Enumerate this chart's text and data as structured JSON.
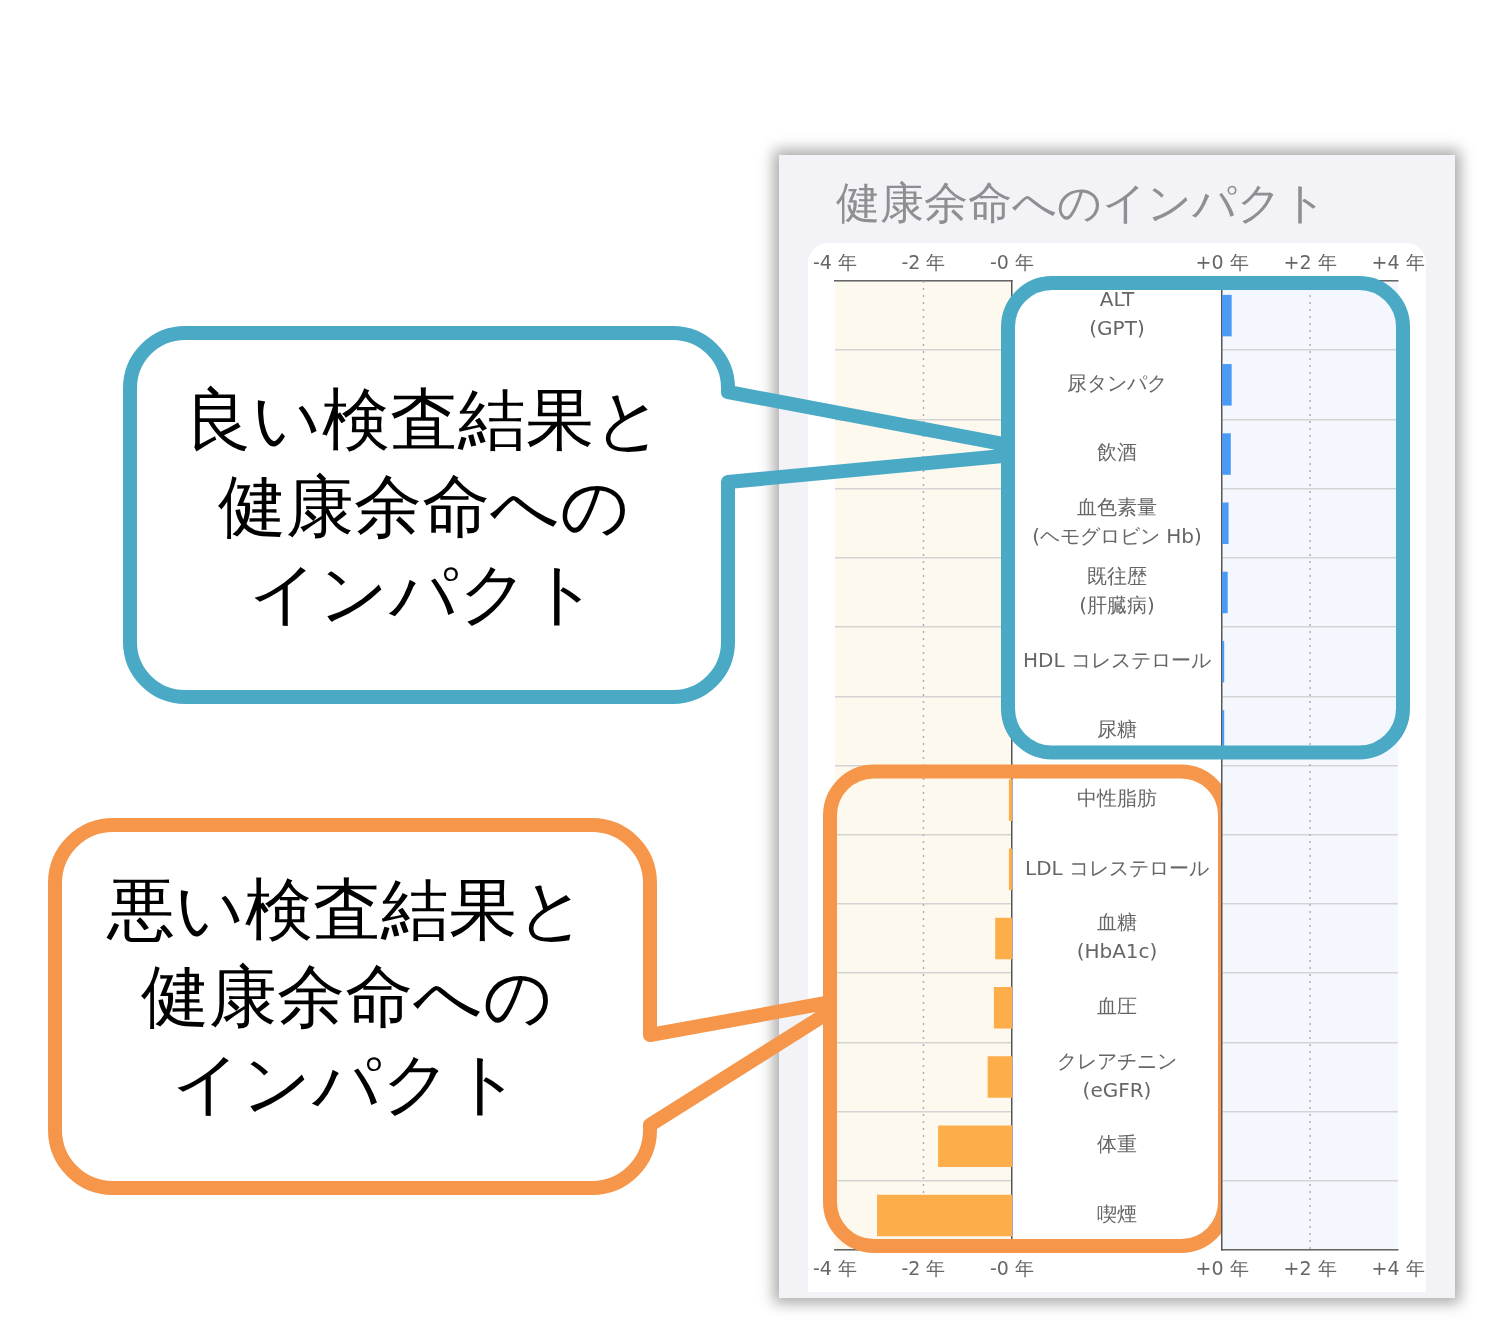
{
  "chart_data": [
    {
      "type": "bar",
      "orientation": "horizontal",
      "title": "健康余命へのインパクト",
      "categories": [
        null,
        null,
        null,
        null,
        null,
        null,
        null,
        "中性脂肪",
        "LDL コレステロール",
        "血糖\n(HbA1c)",
        "血圧",
        "クレアチニン\n(eGFR)",
        "体重",
        "喫煙"
      ],
      "values": [
        null,
        null,
        null,
        null,
        null,
        null,
        null,
        -0.07,
        -0.07,
        -0.38,
        -0.41,
        -0.55,
        -1.67,
        -3.05
      ],
      "color": "#fdae4b",
      "xlim": [
        -4,
        0
      ],
      "xticks": [
        {
          "value": -4,
          "label": "-4 年"
        },
        {
          "value": -2,
          "label": "-2 年"
        },
        {
          "value": 0,
          "label": "-0 年"
        }
      ],
      "x2lim": [
        -4,
        0
      ],
      "x2ticks": [
        {
          "value": -4,
          "label": "-4 年"
        },
        {
          "value": -2,
          "label": "-2 年"
        },
        {
          "value": 0,
          "label": "-0 年"
        }
      ],
      "grid": "y",
      "ref_lines": [
        {
          "axis": "x",
          "value": -2,
          "color": "#b0b0b0",
          "line_style": "dotted"
        }
      ],
      "bands": [
        {
          "axis": "x",
          "from": -4,
          "to": 0,
          "color": "#fef9ef"
        }
      ],
      "annotations": [
        "良い検査結果と健康余命へのインパクト",
        "悪い検査結果と健康余命へのインパクト"
      ]
    },
    {
      "type": "bar",
      "orientation": "horizontal",
      "categories": [
        "ALT\n(GPT)",
        "尿タンパク",
        "飲酒",
        "血色素量\n(ヘモグロビン Hb)",
        "既往歴\n(肝臓病)",
        "HDL コレステロール",
        "尿糖",
        null,
        null,
        null,
        null,
        null,
        null,
        null
      ],
      "values": [
        0.22,
        0.22,
        0.2,
        0.15,
        0.13,
        0.05,
        0.05,
        null,
        null,
        null,
        null,
        null,
        null,
        null
      ],
      "color": "#4b9bf6",
      "xlim": [
        0,
        4
      ],
      "xticks": [
        {
          "value": 0,
          "label": "+0 年"
        },
        {
          "value": 2,
          "label": "+2 年"
        },
        {
          "value": 4,
          "label": "+4 年"
        }
      ],
      "x2lim": [
        0,
        4
      ],
      "x2ticks": [
        {
          "value": 0,
          "label": "+0 年"
        },
        {
          "value": 2,
          "label": "+2 年"
        },
        {
          "value": 4,
          "label": "+4 年"
        }
      ],
      "grid": "y",
      "ref_lines": [
        {
          "axis": "x",
          "value": 2,
          "color": "#b0b0b0",
          "line_style": "dotted"
        }
      ],
      "bands": [
        {
          "axis": "x",
          "from": 0,
          "to": 4,
          "color": "#f4f8fe"
        }
      ]
    }
  ]
}
